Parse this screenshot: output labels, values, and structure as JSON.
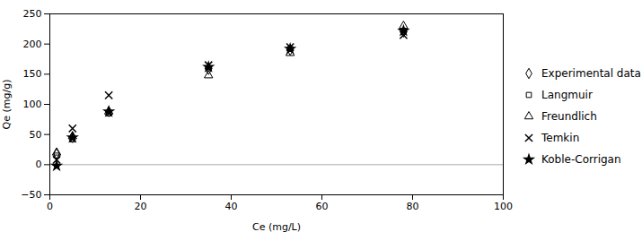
{
  "chart_data": {
    "type": "scatter",
    "xlabel": "Ce (mg/L)",
    "ylabel": "Qe (mg/g)",
    "x": [
      1.5,
      5.0,
      13.0,
      35.0,
      53.0,
      78.0
    ],
    "series": [
      {
        "name": "Experimental data",
        "color": "black",
        "marker": "diamond",
        "values": [
          18.0,
          45.0,
          88.0,
          158.0,
          190.0,
          220.0
        ]
      },
      {
        "name": "Langmuir",
        "color": "black",
        "marker": "square",
        "values": [
          15.0,
          42.0,
          85.0,
          160.0,
          192.0,
          222.0
        ]
      },
      {
        "name": "Freundlich",
        "color": "black",
        "marker": "triangle",
        "values": [
          20.0,
          47.0,
          88.0,
          148.0,
          185.0,
          230.0
        ]
      },
      {
        "name": "Temkin",
        "color": "black",
        "marker": "x",
        "values": [
          8.0,
          60.0,
          115.0,
          165.0,
          195.0,
          215.0
        ]
      },
      {
        "name": "Koble-Corrigan",
        "color": "black",
        "marker": "star",
        "values": [
          -2.0,
          45.0,
          88.0,
          162.0,
          192.0,
          222.0
        ]
      }
    ],
    "hline": 0,
    "xlim": [
      0,
      100
    ],
    "ylim": [
      -50,
      250
    ],
    "xticks": [
      0,
      20,
      40,
      60,
      80,
      100
    ],
    "yticks": [
      -50,
      0,
      50,
      100,
      150,
      200,
      250
    ],
    "grid": false,
    "legend": "right"
  }
}
